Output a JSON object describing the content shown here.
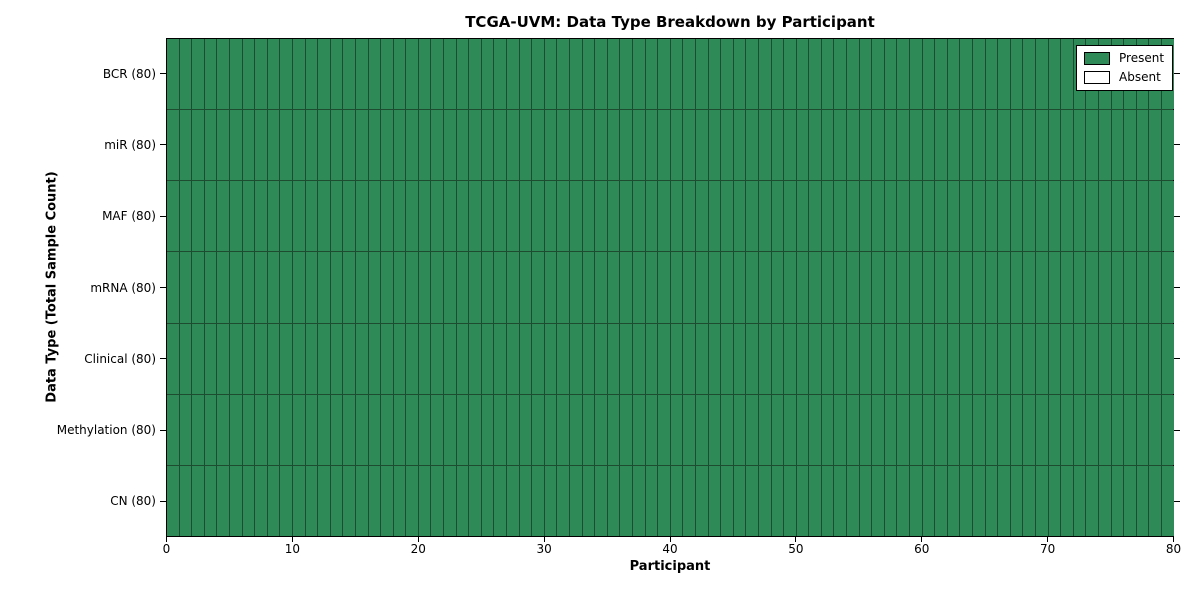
{
  "chart_data": {
    "type": "heatmap",
    "title": "TCGA-UVM: Data Type Breakdown by Participant",
    "xlabel": "Participant",
    "ylabel": "Data Type (Total Sample Count)",
    "x_range": [
      0,
      80
    ],
    "x_ticks": [
      0,
      10,
      20,
      30,
      40,
      50,
      60,
      70,
      80
    ],
    "n_participants": 80,
    "rows": [
      {
        "label": "BCR (80)",
        "data_type": "BCR",
        "total_samples": 80,
        "present_participants": 80,
        "absent_participants": 0
      },
      {
        "label": "miR (80)",
        "data_type": "miR",
        "total_samples": 80,
        "present_participants": 80,
        "absent_participants": 0
      },
      {
        "label": "MAF (80)",
        "data_type": "MAF",
        "total_samples": 80,
        "present_participants": 80,
        "absent_participants": 0
      },
      {
        "label": "mRNA (80)",
        "data_type": "mRNA",
        "total_samples": 80,
        "present_participants": 80,
        "absent_participants": 0
      },
      {
        "label": "Clinical (80)",
        "data_type": "Clinical",
        "total_samples": 80,
        "present_participants": 80,
        "absent_participants": 0
      },
      {
        "label": "Methylation (80)",
        "data_type": "Methylation",
        "total_samples": 80,
        "present_participants": 80,
        "absent_participants": 0
      },
      {
        "label": "CN (80)",
        "data_type": "CN",
        "total_samples": 80,
        "present_participants": 80,
        "absent_participants": 0
      }
    ],
    "legend": {
      "position": "upper right",
      "items": [
        {
          "label": "Present",
          "color": "#2e8b57"
        },
        {
          "label": "Absent",
          "color": "#ffffff"
        }
      ]
    },
    "colors": {
      "present": "#2e8b57",
      "absent": "#ffffff",
      "cell_edge": "#1d4c31",
      "axis": "#000000",
      "background": "#ffffff"
    }
  }
}
